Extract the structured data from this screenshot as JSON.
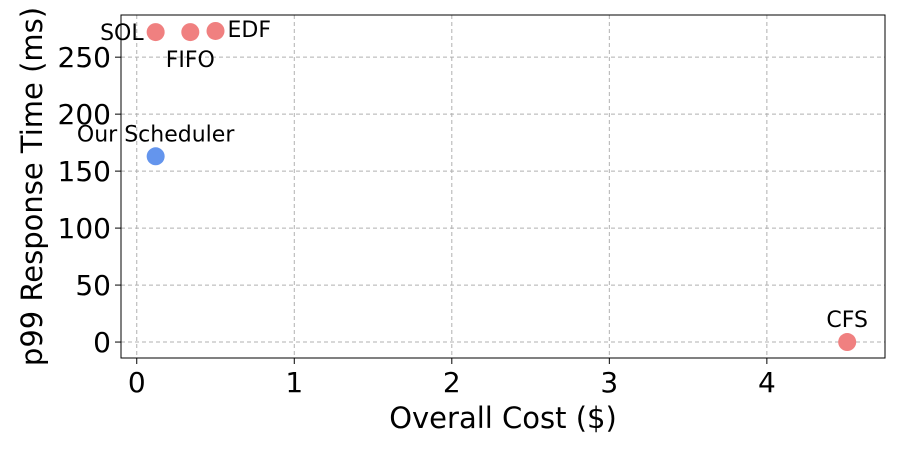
{
  "chart_data": {
    "type": "scatter",
    "title": "",
    "xlabel": "Overall Cost ($)",
    "ylabel": "p99 Response Time (ms)",
    "xlim": [
      -0.1,
      4.75
    ],
    "ylim": [
      -14,
      287
    ],
    "xticks": [
      0,
      1,
      2,
      3,
      4
    ],
    "yticks": [
      0,
      50,
      100,
      150,
      200,
      250
    ],
    "grid": true,
    "points": [
      {
        "label": "SOL",
        "x": 0.12,
        "y": 272,
        "color": "#f08080",
        "label_position": "left"
      },
      {
        "label": "FIFO",
        "x": 0.34,
        "y": 272,
        "color": "#f08080",
        "label_position": "below"
      },
      {
        "label": "EDF",
        "x": 0.5,
        "y": 273,
        "color": "#f08080",
        "label_position": "right"
      },
      {
        "label": "Our Scheduler",
        "x": 0.12,
        "y": 163,
        "color": "#6495ed",
        "label_position": "above"
      },
      {
        "label": "CFS",
        "x": 4.51,
        "y": 0,
        "color": "#f08080",
        "label_position": "above"
      }
    ]
  }
}
